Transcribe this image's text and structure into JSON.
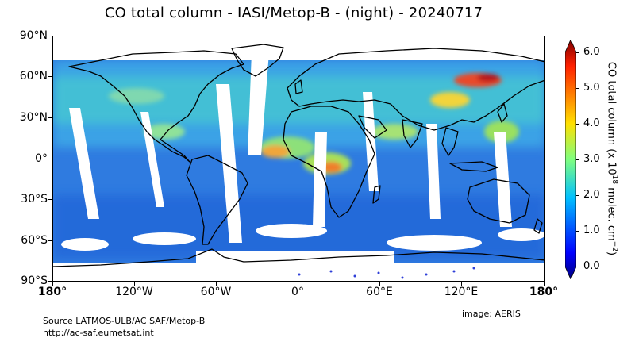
{
  "title": "CO total column - IASI/Metop-B - (night) - 20240717",
  "axes": {
    "y_ticks": [
      "90°N",
      "60°N",
      "30°N",
      "0°",
      "30°S",
      "60°S",
      "90°S"
    ],
    "x_ticks": [
      "180°",
      "120°W",
      "60°W",
      "0°",
      "60°E",
      "120°E",
      "180°"
    ]
  },
  "colorbar": {
    "title_main": "CO total column (x 10",
    "title_exp": "18",
    "title_unit": " molec. cm",
    "title_unit_exp": "−2",
    "title_close": ")",
    "ticks": [
      "6.0",
      "5.0",
      "4.0",
      "3.0",
      "2.0",
      "1.0",
      "0.0"
    ],
    "range": [
      0,
      6
    ],
    "colormap": "jet"
  },
  "footer": {
    "source": "Source LATMOS-ULB/AC SAF/Metop-B",
    "url": "http://ac-saf.eumetsat.int",
    "credit": "image: AERIS"
  },
  "colors": {
    "background_field": "#2f7be0",
    "coastline": "#000000"
  }
}
